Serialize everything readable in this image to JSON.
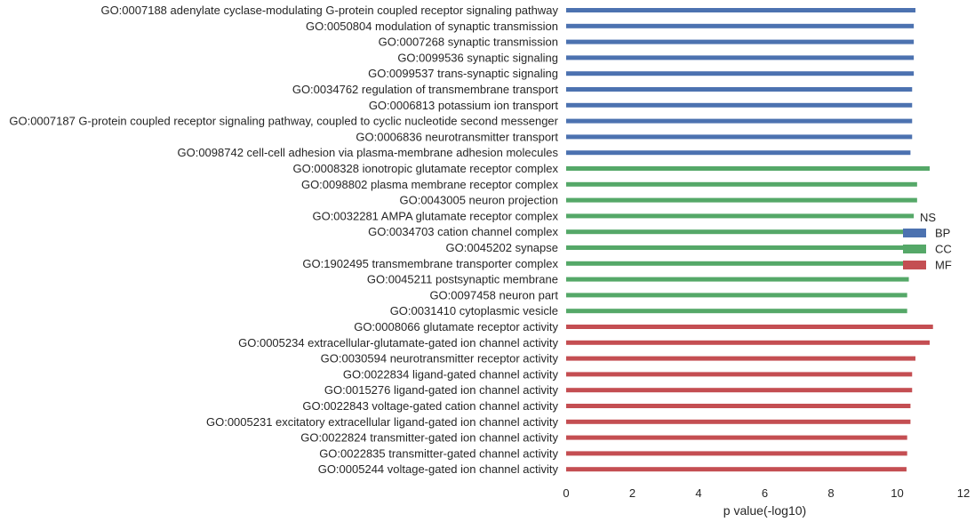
{
  "chart_data": {
    "type": "bar",
    "orientation": "horizontal",
    "xlabel": "p value(-log10)",
    "ylabel": "",
    "xlim": [
      0,
      12
    ],
    "xticks": [
      0,
      2,
      4,
      6,
      8,
      10,
      12
    ],
    "grid": false,
    "legend": {
      "title": "NS",
      "placement": "right",
      "entries": [
        "BP",
        "CC",
        "MF"
      ]
    },
    "colors": {
      "BP": "#4c72b0",
      "CC": "#55a868",
      "MF": "#c44e52"
    },
    "categories": [
      "GO:0007188 adenylate cyclase-modulating G-protein coupled receptor signaling pathway",
      "GO:0050804 modulation of synaptic transmission",
      "GO:0007268 synaptic transmission",
      "GO:0099536 synaptic signaling",
      "GO:0099537 trans-synaptic signaling",
      "GO:0034762 regulation of transmembrane transport",
      "GO:0006813 potassium ion transport",
      "GO:0007187 G-protein coupled receptor signaling pathway, coupled to cyclic nucleotide second messenger",
      "GO:0006836 neurotransmitter transport",
      "GO:0098742 cell-cell adhesion via plasma-membrane adhesion molecules",
      "GO:0008328 ionotropic glutamate receptor complex",
      "GO:0098802 plasma membrane receptor complex",
      "GO:0043005 neuron projection",
      "GO:0032281 AMPA glutamate receptor complex",
      "GO:0034703 cation channel complex",
      "GO:0045202 synapse",
      "GO:1902495 transmembrane transporter complex",
      "GO:0045211 postsynaptic membrane",
      "GO:0097458 neuron part",
      "GO:0031410 cytoplasmic vesicle",
      "GO:0008066 glutamate receptor activity",
      "GO:0005234 extracellular-glutamate-gated ion channel activity",
      "GO:0030594 neurotransmitter receptor activity",
      "GO:0022834 ligand-gated channel activity",
      "GO:0015276 ligand-gated ion channel activity",
      "GO:0022843 voltage-gated cation channel activity",
      "GO:0005231 excitatory extracellular ligand-gated ion channel activity",
      "GO:0022824 transmitter-gated ion channel activity",
      "GO:0022835 transmitter-gated channel activity",
      "GO:0005244 voltage-gated ion channel activity"
    ],
    "groups": [
      "BP",
      "BP",
      "BP",
      "BP",
      "BP",
      "BP",
      "BP",
      "BP",
      "BP",
      "BP",
      "CC",
      "CC",
      "CC",
      "CC",
      "CC",
      "CC",
      "CC",
      "CC",
      "CC",
      "CC",
      "MF",
      "MF",
      "MF",
      "MF",
      "MF",
      "MF",
      "MF",
      "MF",
      "MF",
      "MF"
    ],
    "values": [
      10.55,
      10.5,
      10.5,
      10.5,
      10.5,
      10.45,
      10.45,
      10.45,
      10.45,
      10.4,
      10.98,
      10.6,
      10.6,
      10.5,
      10.4,
      10.4,
      10.4,
      10.35,
      10.3,
      10.3,
      11.08,
      10.98,
      10.55,
      10.45,
      10.45,
      10.4,
      10.4,
      10.3,
      10.3,
      10.28
    ]
  }
}
